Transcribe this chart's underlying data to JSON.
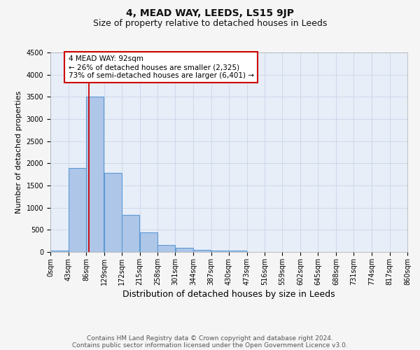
{
  "title1": "4, MEAD WAY, LEEDS, LS15 9JP",
  "title2": "Size of property relative to detached houses in Leeds",
  "xlabel": "Distribution of detached houses by size in Leeds",
  "ylabel": "Number of detached properties",
  "bin_edges": [
    0,
    43,
    86,
    129,
    172,
    215,
    258,
    301,
    344,
    387,
    430,
    473,
    516,
    559,
    602,
    645,
    688,
    731,
    774,
    817,
    860
  ],
  "bar_heights": [
    30,
    1900,
    3500,
    1780,
    830,
    450,
    155,
    95,
    50,
    35,
    30,
    0,
    0,
    0,
    0,
    0,
    0,
    0,
    0,
    0
  ],
  "bar_color": "#aec6e8",
  "bar_edge_color": "#5b9bd5",
  "background_color": "#e8eef8",
  "grid_color": "#c8d4e8",
  "fig_background": "#f5f5f5",
  "vline_x": 92,
  "vline_color": "#cc0000",
  "ylim": [
    0,
    4500
  ],
  "xlim": [
    0,
    860
  ],
  "annotation_text": "4 MEAD WAY: 92sqm\n← 26% of detached houses are smaller (2,325)\n73% of semi-detached houses are larger (6,401) →",
  "annotation_box_color": "#ffffff",
  "annotation_border_color": "#cc0000",
  "xtick_labels": [
    "0sqm",
    "43sqm",
    "86sqm",
    "129sqm",
    "172sqm",
    "215sqm",
    "258sqm",
    "301sqm",
    "344sqm",
    "387sqm",
    "430sqm",
    "473sqm",
    "516sqm",
    "559sqm",
    "602sqm",
    "645sqm",
    "688sqm",
    "731sqm",
    "774sqm",
    "817sqm",
    "860sqm"
  ],
  "footer_line1": "Contains HM Land Registry data © Crown copyright and database right 2024.",
  "footer_line2": "Contains public sector information licensed under the Open Government Licence v3.0.",
  "title1_fontsize": 10,
  "title2_fontsize": 9,
  "xlabel_fontsize": 9,
  "ylabel_fontsize": 8,
  "tick_fontsize": 7,
  "annotation_fontsize": 7.5,
  "footer_fontsize": 6.5
}
